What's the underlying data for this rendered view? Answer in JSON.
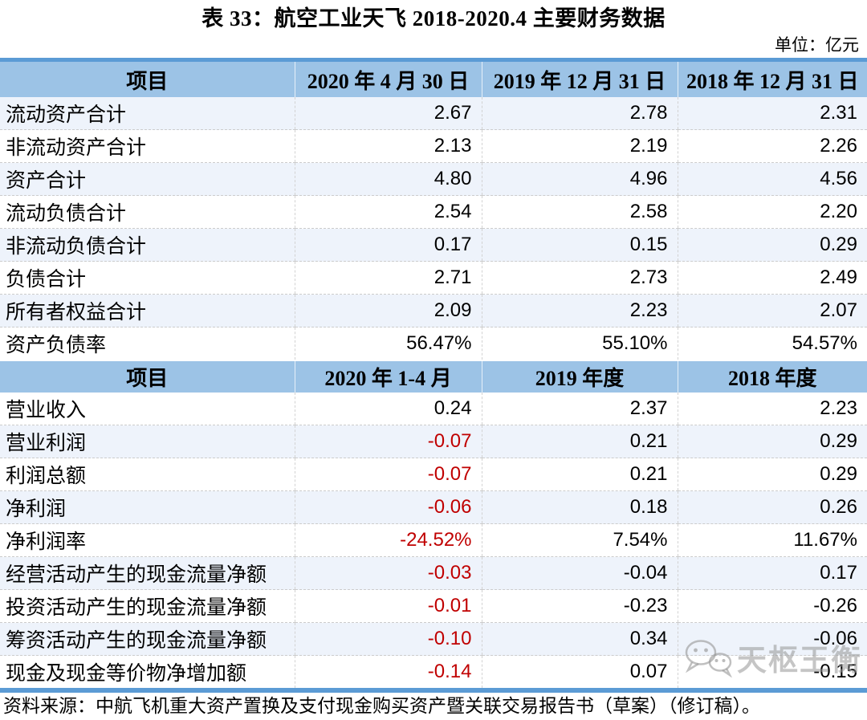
{
  "title": "表 33：航空工业天飞 2018-2020.4 主要财务数据",
  "unit_note": "单位：亿元",
  "source_note": "资料来源：中航飞机重大资产置换及支付现金购买资产暨关联交易报告书（草案）（修订稿）。",
  "watermark": {
    "icon": "wechat-icon",
    "text": "天枢王衡"
  },
  "colors": {
    "header_bg": "#9CC3E6",
    "band_bg": "#EEF3FB",
    "accent_border": "#5B9BD5",
    "negative": "#C00000"
  },
  "table": {
    "negative_red_column": 0,
    "sections": [
      {
        "headers": [
          "项目",
          "2020 年 4 月 30 日",
          "2019 年 12 月 31 日",
          "2018 年 12 月 31 日"
        ],
        "banded_parity": 0,
        "rows": [
          {
            "label": "流动资产合计",
            "values": [
              "2.67",
              "2.78",
              "2.31"
            ]
          },
          {
            "label": "非流动资产合计",
            "values": [
              "2.13",
              "2.19",
              "2.26"
            ]
          },
          {
            "label": "资产合计",
            "values": [
              "4.80",
              "4.96",
              "4.56"
            ]
          },
          {
            "label": "流动负债合计",
            "values": [
              "2.54",
              "2.58",
              "2.20"
            ]
          },
          {
            "label": "非流动负债合计",
            "values": [
              "0.17",
              "0.15",
              "0.29"
            ]
          },
          {
            "label": "负债合计",
            "values": [
              "2.71",
              "2.73",
              "2.49"
            ]
          },
          {
            "label": "所有者权益合计",
            "values": [
              "2.09",
              "2.23",
              "2.07"
            ]
          },
          {
            "label": "资产负债率",
            "values": [
              "56.47%",
              "55.10%",
              "54.57%"
            ]
          }
        ]
      },
      {
        "headers": [
          "项目",
          "2020 年 1-4 月",
          "2019 年度",
          "2018 年度"
        ],
        "banded_parity": 1,
        "rows": [
          {
            "label": "营业收入",
            "values": [
              "0.24",
              "2.37",
              "2.23"
            ]
          },
          {
            "label": "营业利润",
            "values": [
              "-0.07",
              "0.21",
              "0.29"
            ]
          },
          {
            "label": "利润总额",
            "values": [
              "-0.07",
              "0.21",
              "0.29"
            ]
          },
          {
            "label": "净利润",
            "values": [
              "-0.06",
              "0.18",
              "0.26"
            ]
          },
          {
            "label": "净利润率",
            "values": [
              "-24.52%",
              "7.54%",
              "11.67%"
            ]
          },
          {
            "label": "经营活动产生的现金流量净额",
            "values": [
              "-0.03",
              "-0.04",
              "0.17"
            ]
          },
          {
            "label": "投资活动产生的现金流量净额",
            "values": [
              "-0.01",
              "-0.23",
              "-0.26"
            ]
          },
          {
            "label": "筹资活动产生的现金流量净额",
            "values": [
              "-0.10",
              "0.34",
              "-0.06"
            ]
          },
          {
            "label": "现金及现金等价物净增加额",
            "values": [
              "-0.14",
              "0.07",
              "-0.15"
            ]
          }
        ]
      }
    ]
  }
}
